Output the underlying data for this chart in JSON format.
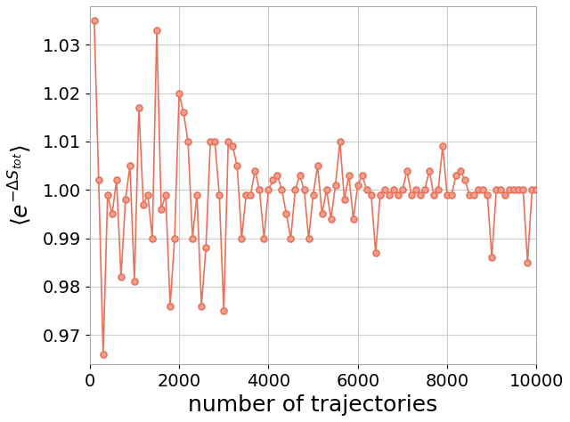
{
  "x": [
    100,
    200,
    300,
    400,
    500,
    600,
    700,
    800,
    900,
    1000,
    1100,
    1200,
    1300,
    1400,
    1500,
    1600,
    1700,
    1800,
    1900,
    2000,
    2100,
    2200,
    2300,
    2400,
    2500,
    2600,
    2700,
    2800,
    2900,
    3000,
    3100,
    3200,
    3300,
    3400,
    3500,
    3600,
    3700,
    3800,
    3900,
    4000,
    4100,
    4200,
    4300,
    4400,
    4500,
    4600,
    4700,
    4800,
    4900,
    5000,
    5100,
    5200,
    5300,
    5400,
    5500,
    5600,
    5700,
    5800,
    5900,
    6000,
    6100,
    6200,
    6300,
    6400,
    6500,
    6600,
    6700,
    6800,
    6900,
    7000,
    7100,
    7200,
    7300,
    7400,
    7500,
    7600,
    7700,
    7800,
    7900,
    8000,
    8100,
    8200,
    8300,
    8400,
    8500,
    8600,
    8700,
    8800,
    8900,
    9000,
    9100,
    9200,
    9300,
    9400,
    9500,
    9600,
    9700,
    9800,
    9900,
    10000
  ],
  "y": [
    1.035,
    1.002,
    0.966,
    0.999,
    0.995,
    1.002,
    0.982,
    0.998,
    1.005,
    0.981,
    1.017,
    0.997,
    0.999,
    0.99,
    1.033,
    0.996,
    0.999,
    0.976,
    0.99,
    1.02,
    1.016,
    1.01,
    0.99,
    0.999,
    0.976,
    0.988,
    1.01,
    1.01,
    0.999,
    0.975,
    1.01,
    1.009,
    1.005,
    0.99,
    0.999,
    0.999,
    1.004,
    1.0,
    0.99,
    1.0,
    1.002,
    1.003,
    1.0,
    0.995,
    0.99,
    1.0,
    1.003,
    1.0,
    0.99,
    0.999,
    1.005,
    0.995,
    1.0,
    0.994,
    1.001,
    1.01,
    0.998,
    1.003,
    0.994,
    1.001,
    1.003,
    1.0,
    0.999,
    0.987,
    0.999,
    1.0,
    0.999,
    1.0,
    0.999,
    1.0,
    1.004,
    0.999,
    1.0,
    0.999,
    1.0,
    1.004,
    0.999,
    1.0,
    1.009,
    0.999,
    0.999,
    1.003,
    1.004,
    1.002,
    0.999,
    0.999,
    1.0,
    1.0,
    0.999,
    0.986,
    1.0,
    1.0,
    0.999,
    1.0,
    1.0,
    1.0,
    1.0,
    0.985,
    1.0,
    1.0
  ],
  "line_color": "#E8735A",
  "marker_facecolor": "#F0A090",
  "xlabel": "number of trajectories",
  "ylabel": "$\\langle e^{-\\Delta S_{tot}} \\rangle$",
  "xlim": [
    0,
    10000
  ],
  "ylim": [
    0.964,
    1.038
  ],
  "yticks": [
    0.97,
    0.98,
    0.99,
    1.0,
    1.01,
    1.02,
    1.03
  ],
  "xticks": [
    0,
    2000,
    4000,
    6000,
    8000,
    10000
  ],
  "grid_color": "#cccccc",
  "bg_color": "#ffffff",
  "figsize": [
    6.4,
    4.74
  ],
  "dpi": 100
}
